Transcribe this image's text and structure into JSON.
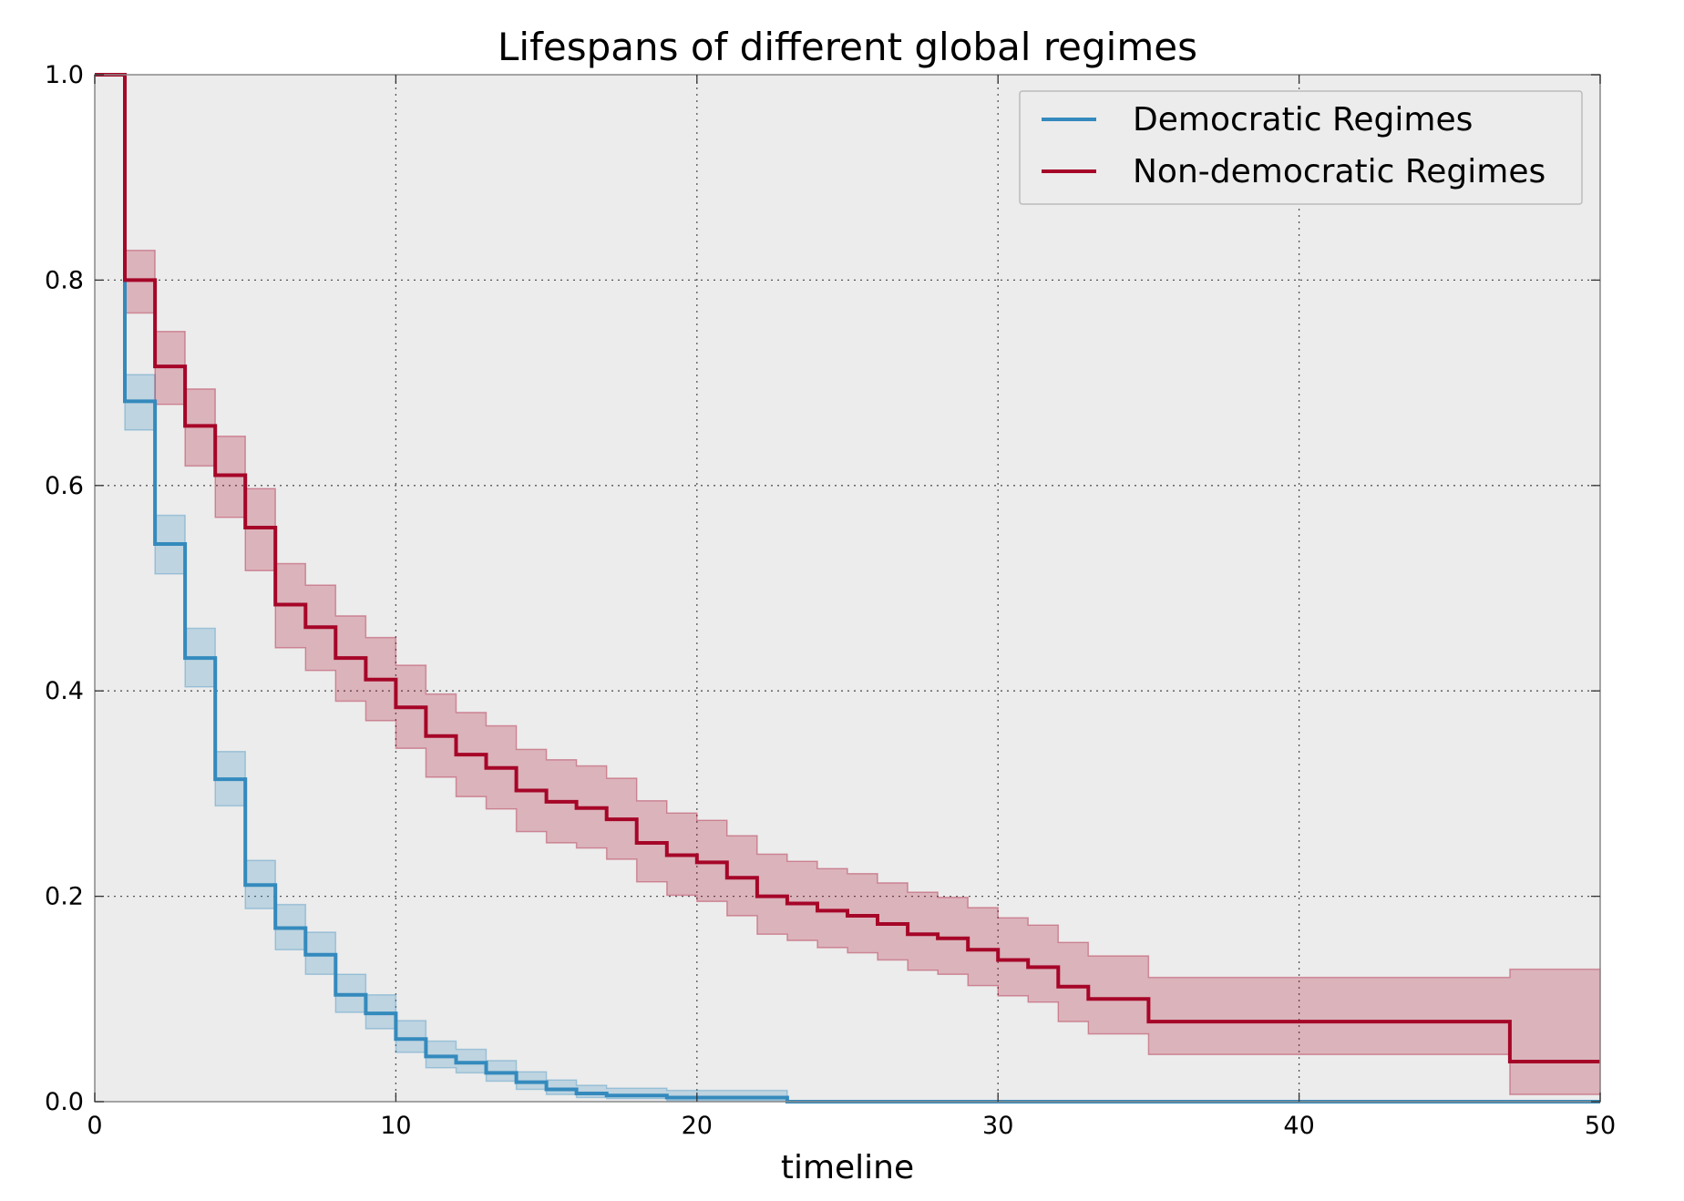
{
  "chart_data": {
    "type": "line",
    "step": "post",
    "title": "Lifespans of different global regimes",
    "xlabel": "timeline",
    "ylabel": "",
    "xlim": [
      0,
      50
    ],
    "ylim": [
      0.0,
      1.0
    ],
    "xticks": [
      "0",
      "10",
      "20",
      "30",
      "40",
      "50"
    ],
    "yticks": [
      "0.0",
      "0.2",
      "0.4",
      "0.6",
      "0.8",
      "1.0"
    ],
    "grid": true,
    "legend_position": "top-right",
    "background_color": "#ececec",
    "series": [
      {
        "name": "Democratic Regimes",
        "color": "#348abd",
        "x": [
          0,
          1,
          2,
          3,
          4,
          5,
          6,
          7,
          8,
          9,
          10,
          11,
          12,
          13,
          14,
          15,
          16,
          17,
          19,
          23
        ],
        "y": [
          1.0,
          0.682,
          0.543,
          0.432,
          0.314,
          0.211,
          0.169,
          0.143,
          0.104,
          0.086,
          0.061,
          0.044,
          0.038,
          0.028,
          0.019,
          0.012,
          0.008,
          0.006,
          0.004,
          0.0
        ],
        "ci_lower": [
          1.0,
          0.654,
          0.514,
          0.404,
          0.288,
          0.188,
          0.148,
          0.124,
          0.087,
          0.071,
          0.048,
          0.033,
          0.028,
          0.02,
          0.012,
          0.007,
          0.004,
          0.003,
          0.001,
          0.0
        ],
        "ci_upper": [
          1.0,
          0.708,
          0.571,
          0.461,
          0.341,
          0.235,
          0.192,
          0.165,
          0.124,
          0.104,
          0.079,
          0.059,
          0.051,
          0.04,
          0.029,
          0.021,
          0.016,
          0.013,
          0.011,
          0.0
        ]
      },
      {
        "name": "Non-democratic Regimes",
        "color": "#a60628",
        "x": [
          0,
          1,
          2,
          3,
          4,
          5,
          6,
          7,
          8,
          9,
          10,
          11,
          12,
          13,
          14,
          15,
          16,
          17,
          18,
          19,
          20,
          21,
          22,
          23,
          24,
          25,
          26,
          27,
          28,
          29,
          30,
          31,
          32,
          33,
          35,
          47
        ],
        "y": [
          1.0,
          0.8,
          0.716,
          0.658,
          0.61,
          0.559,
          0.484,
          0.462,
          0.432,
          0.411,
          0.384,
          0.356,
          0.338,
          0.325,
          0.303,
          0.292,
          0.286,
          0.275,
          0.252,
          0.24,
          0.233,
          0.218,
          0.2,
          0.193,
          0.186,
          0.181,
          0.173,
          0.163,
          0.159,
          0.148,
          0.138,
          0.131,
          0.112,
          0.1,
          0.078,
          0.039
        ],
        "ci_lower": [
          1.0,
          0.768,
          0.679,
          0.619,
          0.569,
          0.517,
          0.442,
          0.42,
          0.39,
          0.371,
          0.344,
          0.316,
          0.297,
          0.285,
          0.263,
          0.252,
          0.247,
          0.236,
          0.214,
          0.201,
          0.195,
          0.181,
          0.163,
          0.157,
          0.15,
          0.145,
          0.138,
          0.128,
          0.124,
          0.113,
          0.103,
          0.097,
          0.078,
          0.066,
          0.046,
          0.007
        ],
        "ci_upper": [
          1.0,
          0.829,
          0.75,
          0.694,
          0.648,
          0.597,
          0.524,
          0.503,
          0.473,
          0.452,
          0.425,
          0.397,
          0.379,
          0.366,
          0.343,
          0.333,
          0.327,
          0.315,
          0.293,
          0.281,
          0.274,
          0.259,
          0.241,
          0.234,
          0.227,
          0.222,
          0.213,
          0.204,
          0.199,
          0.189,
          0.179,
          0.172,
          0.155,
          0.142,
          0.121,
          0.129
        ]
      }
    ]
  }
}
